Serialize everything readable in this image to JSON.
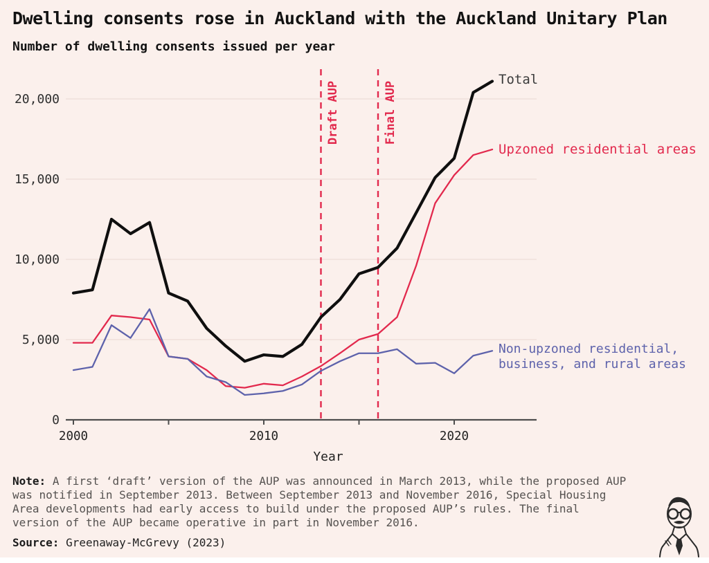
{
  "header": {
    "title": "Dwelling consents rose in Auckland with the Auckland Unitary Plan",
    "subtitle": "Number of dwelling consents issued per year"
  },
  "chart_data": {
    "type": "line",
    "x": [
      2000,
      2001,
      2002,
      2003,
      2004,
      2005,
      2006,
      2007,
      2008,
      2009,
      2010,
      2011,
      2012,
      2013,
      2014,
      2015,
      2016,
      2017,
      2018,
      2019,
      2020,
      2021,
      2022
    ],
    "xlabel": "Year",
    "ylim": [
      0,
      21500
    ],
    "grid": true,
    "legend_position": "right-of-line-ends",
    "series": [
      {
        "name": "total",
        "label": "Total",
        "color": "#0f0f0f",
        "values": [
          7900,
          8100,
          12500,
          11600,
          12300,
          7900,
          7400,
          5700,
          4600,
          3650,
          4050,
          3950,
          4700,
          6400,
          7500,
          9100,
          9500,
          10700,
          12900,
          15100,
          16300,
          20400,
          21100
        ]
      },
      {
        "name": "upzoned",
        "label": "Upzoned residential areas",
        "color": "#e2294d",
        "values": [
          4800,
          4800,
          6500,
          6400,
          6250,
          3950,
          3800,
          3100,
          2100,
          2000,
          2250,
          2150,
          2700,
          3350,
          4150,
          5000,
          5350,
          6400,
          9600,
          13500,
          15250,
          16500,
          16850
        ]
      },
      {
        "name": "non_upzoned",
        "label": "Non-upzoned residential, business, and rural areas",
        "label_lines": [
          "Non-upzoned residential,",
          "business, and rural areas"
        ],
        "color": "#5d62ab",
        "values": [
          3100,
          3300,
          5900,
          5100,
          6900,
          3950,
          3800,
          2700,
          2350,
          1550,
          1650,
          1800,
          2200,
          3050,
          3650,
          4150,
          4150,
          4400,
          3500,
          3550,
          2900,
          4000,
          4300
        ]
      }
    ],
    "annotations": [
      {
        "year": 2013,
        "label": "Draft AUP"
      },
      {
        "year": 2016,
        "label": "Final AUP"
      }
    ],
    "y_ticks": [
      {
        "value": 0,
        "label": "0"
      },
      {
        "value": 5000,
        "label": "5,000"
      },
      {
        "value": 10000,
        "label": "10,000"
      },
      {
        "value": 15000,
        "label": "15,000"
      },
      {
        "value": 20000,
        "label": "20,000"
      }
    ],
    "x_ticks": [
      {
        "year": 2000,
        "label": "2000"
      },
      {
        "year": 2005,
        "label": ""
      },
      {
        "year": 2010,
        "label": "2010"
      },
      {
        "year": 2015,
        "label": ""
      },
      {
        "year": 2020,
        "label": "2020"
      }
    ]
  },
  "note": {
    "label": "Note:",
    "lines": [
      "A first ‘draft’ version of the AUP was announced in March 2013, while the proposed AUP",
      "was notified in September 2013. Between September 2013 and November 2016, Special Housing",
      "Area developments had early access to build under the proposed AUP’s rules. The final",
      "version of the AUP became operative in part in November 2016."
    ]
  },
  "source": {
    "label": "Source:",
    "text": "Greenaway-McGrevy (2023)"
  },
  "colors": {
    "background": "#fbf0ec",
    "total": "#0f0f0f",
    "upzoned": "#e2294d",
    "non_upzoned": "#5d62ab",
    "grid": "#ecdcd7",
    "axis": "#4d4d4d",
    "annotation": "#e2294d",
    "tick_text": "#2f2f2f"
  }
}
